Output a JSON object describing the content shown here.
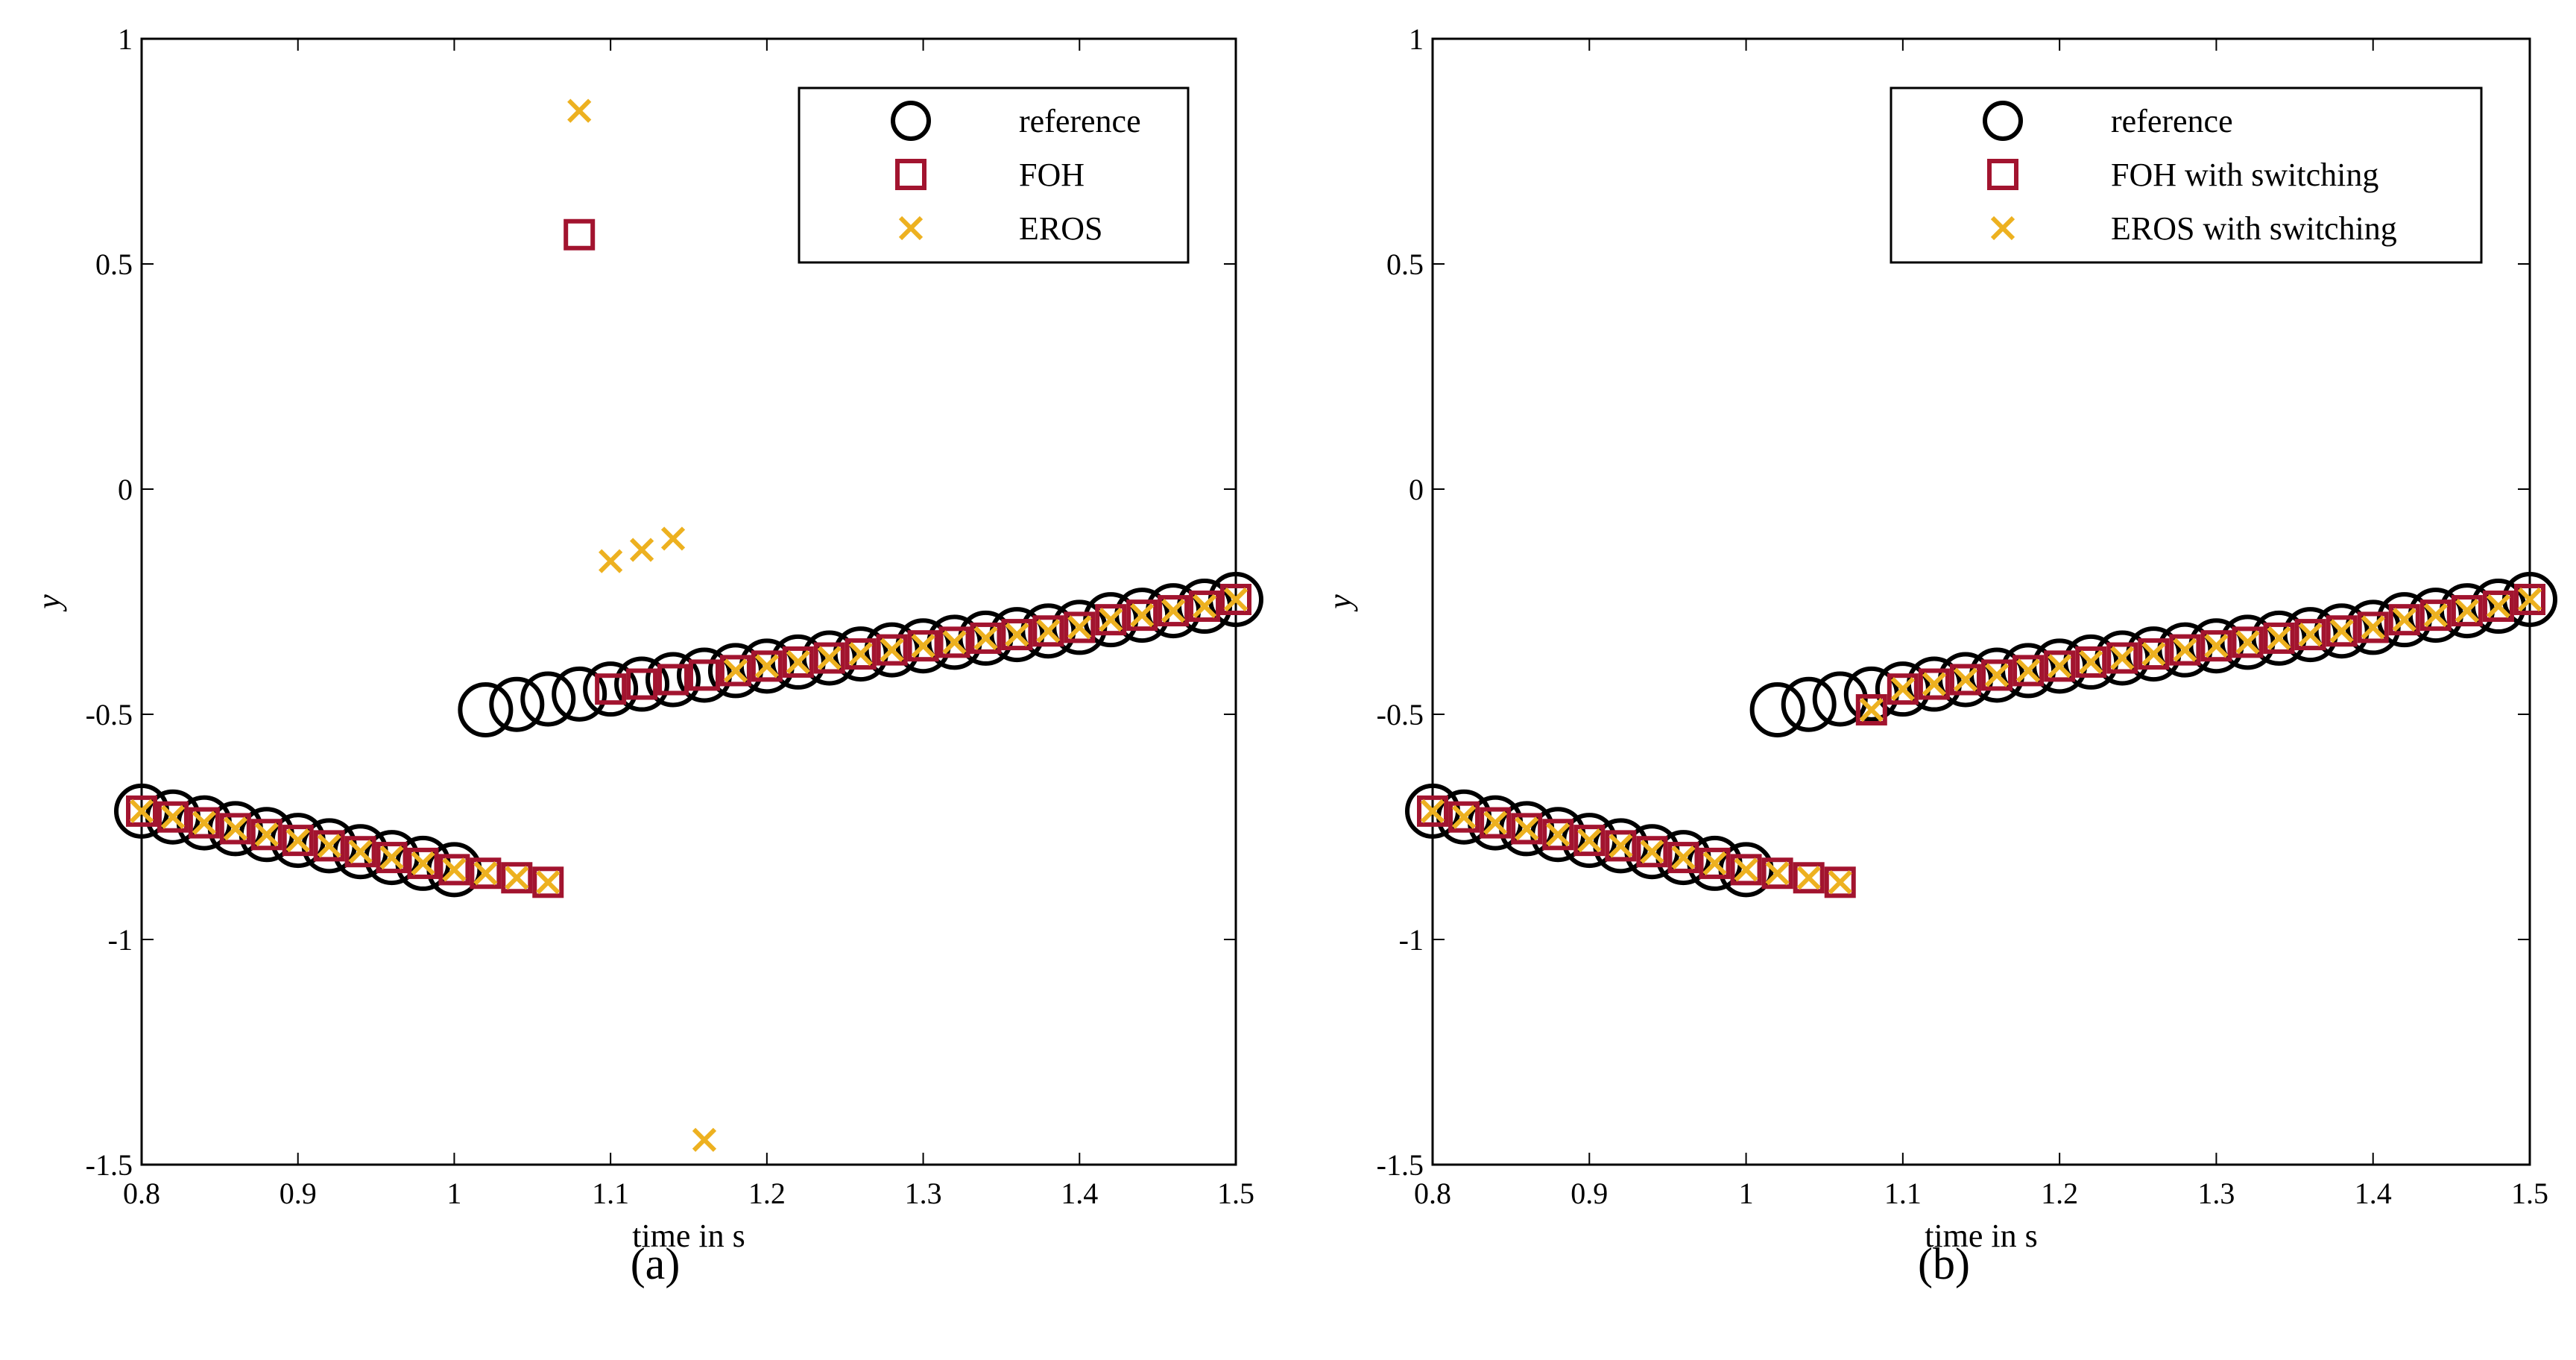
{
  "figure": {
    "panel_labels": [
      "(a)",
      "(b)"
    ]
  },
  "colors": {
    "reference": "#000000",
    "foh": "#a2142f",
    "eros": "#edb120"
  },
  "chart_data": [
    {
      "type": "scatter",
      "panel_label": "(a)",
      "xlabel": "time in s",
      "ylabel": "y",
      "xlim": [
        0.8,
        1.5
      ],
      "ylim": [
        -1.5,
        1
      ],
      "xticks": [
        0.8,
        0.9,
        1,
        1.1,
        1.2,
        1.3,
        1.4,
        1.5
      ],
      "xtick_labels": [
        "0.8",
        "0.9",
        "1",
        "1.1",
        "1.2",
        "1.3",
        "1.4",
        "1.5"
      ],
      "yticks": [
        -1.5,
        -1,
        -0.5,
        0,
        0.5,
        1
      ],
      "ytick_labels": [
        "-1.5",
        "-1",
        "-0.5",
        "0",
        "0.5",
        "1"
      ],
      "grid": false,
      "legend_position": "top-right",
      "series": [
        {
          "name": "reference",
          "marker": "circle",
          "x": [
            0.8,
            0.82,
            0.84,
            0.86,
            0.88,
            0.9,
            0.92,
            0.94,
            0.96,
            0.98,
            1.0,
            1.02,
            1.04,
            1.06,
            1.08,
            1.1,
            1.12,
            1.14,
            1.16,
            1.18,
            1.2,
            1.22,
            1.24,
            1.26,
            1.28,
            1.3,
            1.32,
            1.34,
            1.36,
            1.38,
            1.4,
            1.42,
            1.44,
            1.46,
            1.48,
            1.5
          ],
          "y": [
            -0.715,
            -0.728,
            -0.741,
            -0.754,
            -0.767,
            -0.78,
            -0.792,
            -0.805,
            -0.818,
            -0.831,
            -0.845,
            -0.49,
            -0.478,
            -0.466,
            -0.455,
            -0.444,
            -0.433,
            -0.423,
            -0.413,
            -0.403,
            -0.393,
            -0.384,
            -0.375,
            -0.366,
            -0.357,
            -0.348,
            -0.34,
            -0.331,
            -0.323,
            -0.315,
            -0.307,
            -0.29,
            -0.28,
            -0.27,
            -0.26,
            -0.245
          ]
        },
        {
          "name": "FOH",
          "marker": "square",
          "x": [
            0.8,
            0.82,
            0.84,
            0.86,
            0.88,
            0.9,
            0.92,
            0.94,
            0.96,
            0.98,
            1.0,
            1.02,
            1.04,
            1.06,
            1.08,
            1.1,
            1.12,
            1.14,
            1.16,
            1.18,
            1.2,
            1.22,
            1.24,
            1.26,
            1.28,
            1.3,
            1.32,
            1.34,
            1.36,
            1.38,
            1.4,
            1.42,
            1.44,
            1.46,
            1.48,
            1.5
          ],
          "y": [
            -0.715,
            -0.728,
            -0.741,
            -0.754,
            -0.767,
            -0.78,
            -0.792,
            -0.805,
            -0.818,
            -0.831,
            -0.845,
            -0.853,
            -0.863,
            -0.873,
            0.565,
            -0.444,
            -0.433,
            -0.423,
            -0.413,
            -0.403,
            -0.393,
            -0.384,
            -0.375,
            -0.366,
            -0.357,
            -0.348,
            -0.34,
            -0.331,
            -0.323,
            -0.315,
            -0.307,
            -0.29,
            -0.28,
            -0.27,
            -0.26,
            -0.245
          ]
        },
        {
          "name": "EROS",
          "marker": "x",
          "x": [
            0.8,
            0.82,
            0.84,
            0.86,
            0.88,
            0.9,
            0.92,
            0.94,
            0.96,
            0.98,
            1.0,
            1.02,
            1.04,
            1.06,
            1.08,
            1.1,
            1.12,
            1.14,
            1.16,
            1.18,
            1.2,
            1.22,
            1.24,
            1.26,
            1.28,
            1.3,
            1.32,
            1.34,
            1.36,
            1.38,
            1.4,
            1.42,
            1.44,
            1.46,
            1.48,
            1.5
          ],
          "y": [
            -0.715,
            -0.728,
            -0.741,
            -0.754,
            -0.767,
            -0.78,
            -0.792,
            -0.805,
            -0.818,
            -0.831,
            -0.845,
            -0.853,
            -0.863,
            -0.873,
            0.84,
            -0.16,
            -0.135,
            -0.11,
            -1.445,
            -0.403,
            -0.393,
            -0.384,
            -0.375,
            -0.366,
            -0.357,
            -0.348,
            -0.34,
            -0.331,
            -0.323,
            -0.315,
            -0.307,
            -0.29,
            -0.28,
            -0.27,
            -0.26,
            -0.245
          ]
        }
      ]
    },
    {
      "type": "scatter",
      "panel_label": "(b)",
      "xlabel": "time in s",
      "ylabel": "y",
      "xlim": [
        0.8,
        1.5
      ],
      "ylim": [
        -1.5,
        1
      ],
      "xticks": [
        0.8,
        0.9,
        1,
        1.1,
        1.2,
        1.3,
        1.4,
        1.5
      ],
      "xtick_labels": [
        "0.8",
        "0.9",
        "1",
        "1.1",
        "1.2",
        "1.3",
        "1.4",
        "1.5"
      ],
      "yticks": [
        -1.5,
        -1,
        -0.5,
        0,
        0.5,
        1
      ],
      "ytick_labels": [
        "-1.5",
        "-1",
        "-0.5",
        "0",
        "0.5",
        "1"
      ],
      "grid": false,
      "legend_position": "top-right",
      "series": [
        {
          "name": "reference",
          "marker": "circle",
          "x": [
            0.8,
            0.82,
            0.84,
            0.86,
            0.88,
            0.9,
            0.92,
            0.94,
            0.96,
            0.98,
            1.0,
            1.02,
            1.04,
            1.06,
            1.08,
            1.1,
            1.12,
            1.14,
            1.16,
            1.18,
            1.2,
            1.22,
            1.24,
            1.26,
            1.28,
            1.3,
            1.32,
            1.34,
            1.36,
            1.38,
            1.4,
            1.42,
            1.44,
            1.46,
            1.48,
            1.5
          ],
          "y": [
            -0.715,
            -0.728,
            -0.741,
            -0.754,
            -0.767,
            -0.78,
            -0.792,
            -0.805,
            -0.818,
            -0.831,
            -0.845,
            -0.49,
            -0.478,
            -0.466,
            -0.455,
            -0.444,
            -0.433,
            -0.423,
            -0.413,
            -0.403,
            -0.393,
            -0.384,
            -0.375,
            -0.366,
            -0.357,
            -0.348,
            -0.34,
            -0.331,
            -0.323,
            -0.315,
            -0.307,
            -0.29,
            -0.28,
            -0.27,
            -0.26,
            -0.245
          ]
        },
        {
          "name": "FOH with switching",
          "marker": "square",
          "x": [
            0.8,
            0.82,
            0.84,
            0.86,
            0.88,
            0.9,
            0.92,
            0.94,
            0.96,
            0.98,
            1.0,
            1.02,
            1.04,
            1.06,
            1.08,
            1.1,
            1.12,
            1.14,
            1.16,
            1.18,
            1.2,
            1.22,
            1.24,
            1.26,
            1.28,
            1.3,
            1.32,
            1.34,
            1.36,
            1.38,
            1.4,
            1.42,
            1.44,
            1.46,
            1.48,
            1.5
          ],
          "y": [
            -0.715,
            -0.728,
            -0.741,
            -0.754,
            -0.767,
            -0.78,
            -0.792,
            -0.805,
            -0.818,
            -0.831,
            -0.845,
            -0.853,
            -0.863,
            -0.873,
            -0.49,
            -0.444,
            -0.433,
            -0.423,
            -0.413,
            -0.403,
            -0.393,
            -0.384,
            -0.375,
            -0.366,
            -0.357,
            -0.348,
            -0.34,
            -0.331,
            -0.323,
            -0.315,
            -0.307,
            -0.29,
            -0.28,
            -0.27,
            -0.26,
            -0.245
          ]
        },
        {
          "name": "EROS with switching",
          "marker": "x",
          "x": [
            0.8,
            0.82,
            0.84,
            0.86,
            0.88,
            0.9,
            0.92,
            0.94,
            0.96,
            0.98,
            1.0,
            1.02,
            1.04,
            1.06,
            1.08,
            1.1,
            1.12,
            1.14,
            1.16,
            1.18,
            1.2,
            1.22,
            1.24,
            1.26,
            1.28,
            1.3,
            1.32,
            1.34,
            1.36,
            1.38,
            1.4,
            1.42,
            1.44,
            1.46,
            1.48,
            1.5
          ],
          "y": [
            -0.715,
            -0.728,
            -0.741,
            -0.754,
            -0.767,
            -0.78,
            -0.792,
            -0.805,
            -0.818,
            -0.831,
            -0.845,
            -0.853,
            -0.863,
            -0.873,
            -0.49,
            -0.444,
            -0.433,
            -0.423,
            -0.413,
            -0.403,
            -0.393,
            -0.384,
            -0.375,
            -0.366,
            -0.357,
            -0.348,
            -0.34,
            -0.331,
            -0.323,
            -0.315,
            -0.307,
            -0.29,
            -0.28,
            -0.27,
            -0.26,
            -0.245
          ]
        }
      ]
    }
  ]
}
